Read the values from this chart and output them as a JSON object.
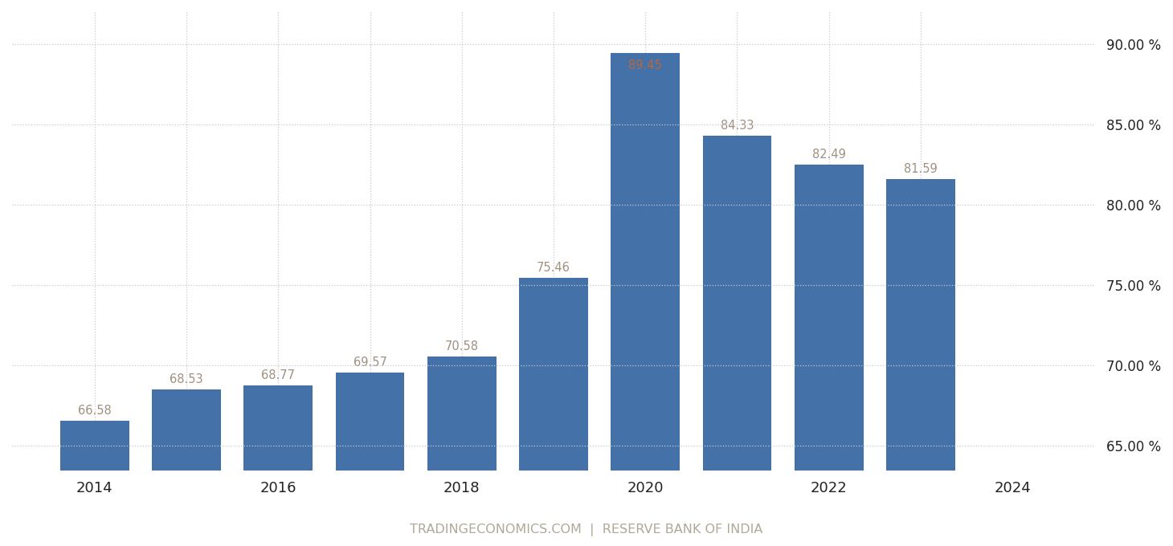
{
  "years": [
    2014,
    2015,
    2016,
    2017,
    2018,
    2019,
    2020,
    2021,
    2022,
    2023
  ],
  "values": [
    66.58,
    68.53,
    68.77,
    69.57,
    70.58,
    75.46,
    89.45,
    84.33,
    82.49,
    81.59
  ],
  "bar_color": "#4472a8",
  "label_color": "#a09080",
  "label_color_2020": "#b5693d",
  "background_color": "#ffffff",
  "grid_color": "#c8c8d0",
  "ylabel_right_ticks": [
    65.0,
    70.0,
    75.0,
    80.0,
    85.0,
    90.0
  ],
  "ymin": 63.5,
  "ymax": 92.0,
  "bar_bottom": 63.5,
  "xtick_labels": [
    "2014",
    "2016",
    "2018",
    "2020",
    "2022",
    "2024"
  ],
  "xtick_positions": [
    2014,
    2016,
    2018,
    2020,
    2022,
    2024
  ],
  "xlim_left": 2013.1,
  "xlim_right": 2024.9,
  "footer_text": "TRADINGECONOMICS.COM  |  RESERVE BANK OF INDIA",
  "footer_color": "#b0a898",
  "bar_width": 0.75
}
